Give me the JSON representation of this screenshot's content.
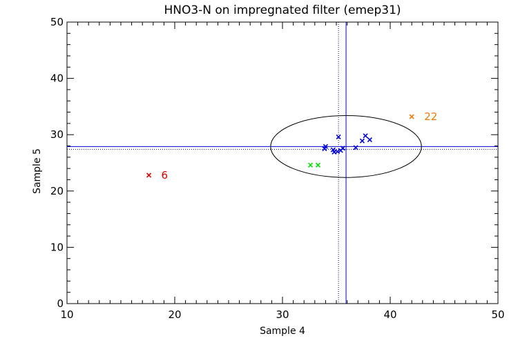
{
  "chart_data": {
    "type": "scatter",
    "title": "HNO3-N on impregnated filter (emep31)",
    "xlabel": "Sample 4",
    "ylabel": "Sample 5",
    "xlim": [
      10,
      50
    ],
    "ylim": [
      0,
      50
    ],
    "xticks": [
      10,
      20,
      30,
      40,
      50
    ],
    "yticks": [
      0,
      10,
      20,
      30,
      40,
      50
    ],
    "grid": false,
    "colors": {
      "axes": "#000000",
      "blue": "#0000dd",
      "green": "#00dd00",
      "red": "#dd0000",
      "orange": "#ee7700",
      "ref_line_solid": "#0000cc",
      "ref_line_dotted": "#000066",
      "ellipse": "#000000"
    },
    "reference_lines": {
      "vertical_solid_x": 35.9,
      "vertical_dotted_x": 35.2,
      "horizontal_solid_y": 27.9,
      "horizontal_dotted_y": 27.4
    },
    "ellipse": {
      "center_x": 35.9,
      "center_y": 27.9,
      "radius_x": 7.0,
      "radius_y": 5.5
    },
    "series": [
      {
        "color": "blue",
        "points": [
          {
            "x": 33.9,
            "y": 27.5
          },
          {
            "x": 34.0,
            "y": 27.9
          },
          {
            "x": 34.7,
            "y": 27.3
          },
          {
            "x": 34.8,
            "y": 26.9
          },
          {
            "x": 35.1,
            "y": 27.0
          },
          {
            "x": 35.2,
            "y": 29.6
          },
          {
            "x": 35.4,
            "y": 27.2
          },
          {
            "x": 35.6,
            "y": 27.6
          },
          {
            "x": 36.8,
            "y": 27.7
          },
          {
            "x": 37.4,
            "y": 28.9
          },
          {
            "x": 37.7,
            "y": 29.8
          },
          {
            "x": 38.1,
            "y": 29.1
          }
        ]
      },
      {
        "color": "green",
        "points": [
          {
            "x": 32.6,
            "y": 24.6
          },
          {
            "x": 33.3,
            "y": 24.6
          }
        ]
      },
      {
        "color": "red",
        "points": [
          {
            "x": 17.6,
            "y": 22.8,
            "label": "6"
          }
        ]
      },
      {
        "color": "orange",
        "points": [
          {
            "x": 42.0,
            "y": 33.2,
            "label": "22"
          }
        ]
      }
    ]
  }
}
